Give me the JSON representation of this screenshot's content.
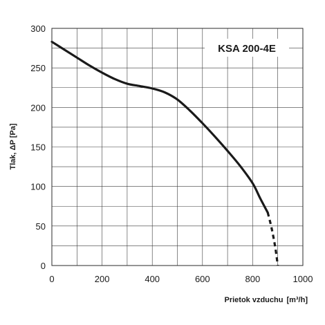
{
  "chart_data": {
    "type": "line",
    "title": "",
    "model_label": "KSA 200-4E",
    "xlabel": "Prietok vzduchu",
    "xlabel_unit": "[m³/h]",
    "ylabel": "Tlak, ΔP [Pa]",
    "xlim": [
      0,
      1000
    ],
    "ylim": [
      0,
      300
    ],
    "x_ticks": [
      0,
      200,
      400,
      600,
      800,
      1000
    ],
    "y_ticks": [
      0,
      50,
      100,
      150,
      200,
      250,
      300
    ],
    "x_grid_step": 100,
    "y_grid_step": 25,
    "grid": true,
    "legend": "none",
    "series": [
      {
        "style": "solid",
        "x": [
          0,
          50,
          100,
          150,
          200,
          250,
          300,
          350,
          400,
          450,
          500,
          550,
          600,
          650,
          700,
          750,
          800,
          830,
          860
        ],
        "y": [
          283,
          273,
          263,
          253,
          244,
          236,
          230,
          227,
          224,
          219,
          210,
          196,
          180,
          163,
          145,
          126,
          104,
          85,
          67
        ]
      },
      {
        "style": "dashed",
        "x": [
          860,
          875,
          890,
          900
        ],
        "y": [
          67,
          48,
          23,
          0
        ]
      }
    ]
  }
}
